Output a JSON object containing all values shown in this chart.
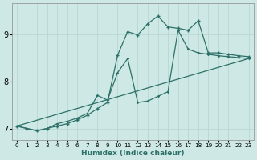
{
  "xlabel": "Humidex (Indice chaleur)",
  "bg_color": "#cde8e5",
  "grid_color": "#b8d8d4",
  "line_color": "#2d7068",
  "xlim": [
    -0.5,
    23.5
  ],
  "ylim": [
    6.75,
    9.65
  ],
  "yticks": [
    7,
    8,
    9
  ],
  "xticks": [
    0,
    1,
    2,
    3,
    4,
    5,
    6,
    7,
    8,
    9,
    10,
    11,
    12,
    13,
    14,
    15,
    16,
    17,
    18,
    19,
    20,
    21,
    22,
    23
  ],
  "line1_x": [
    0,
    1,
    2,
    3,
    4,
    5,
    6,
    7,
    8,
    9,
    10,
    11,
    12,
    13,
    14,
    15,
    16,
    17,
    18,
    19,
    20,
    21,
    22,
    23
  ],
  "line1_y": [
    7.05,
    7.0,
    6.95,
    7.0,
    7.05,
    7.1,
    7.18,
    7.28,
    7.42,
    7.55,
    8.55,
    9.05,
    8.98,
    9.22,
    9.38,
    9.15,
    9.12,
    9.08,
    9.28,
    8.6,
    8.6,
    8.57,
    8.54,
    8.52
  ],
  "line2_x": [
    0,
    1,
    2,
    3,
    4,
    5,
    6,
    7,
    8,
    9,
    10,
    11,
    12,
    13,
    14,
    15,
    16,
    17,
    18,
    19,
    20,
    21,
    22,
    23
  ],
  "line2_y": [
    7.05,
    7.0,
    6.95,
    7.0,
    7.1,
    7.15,
    7.22,
    7.32,
    7.7,
    7.6,
    8.18,
    8.48,
    7.55,
    7.58,
    7.68,
    7.78,
    9.08,
    8.68,
    8.6,
    8.57,
    8.54,
    8.52,
    8.5,
    8.48
  ],
  "line3_x": [
    0,
    23
  ],
  "line3_y": [
    7.05,
    8.48
  ]
}
